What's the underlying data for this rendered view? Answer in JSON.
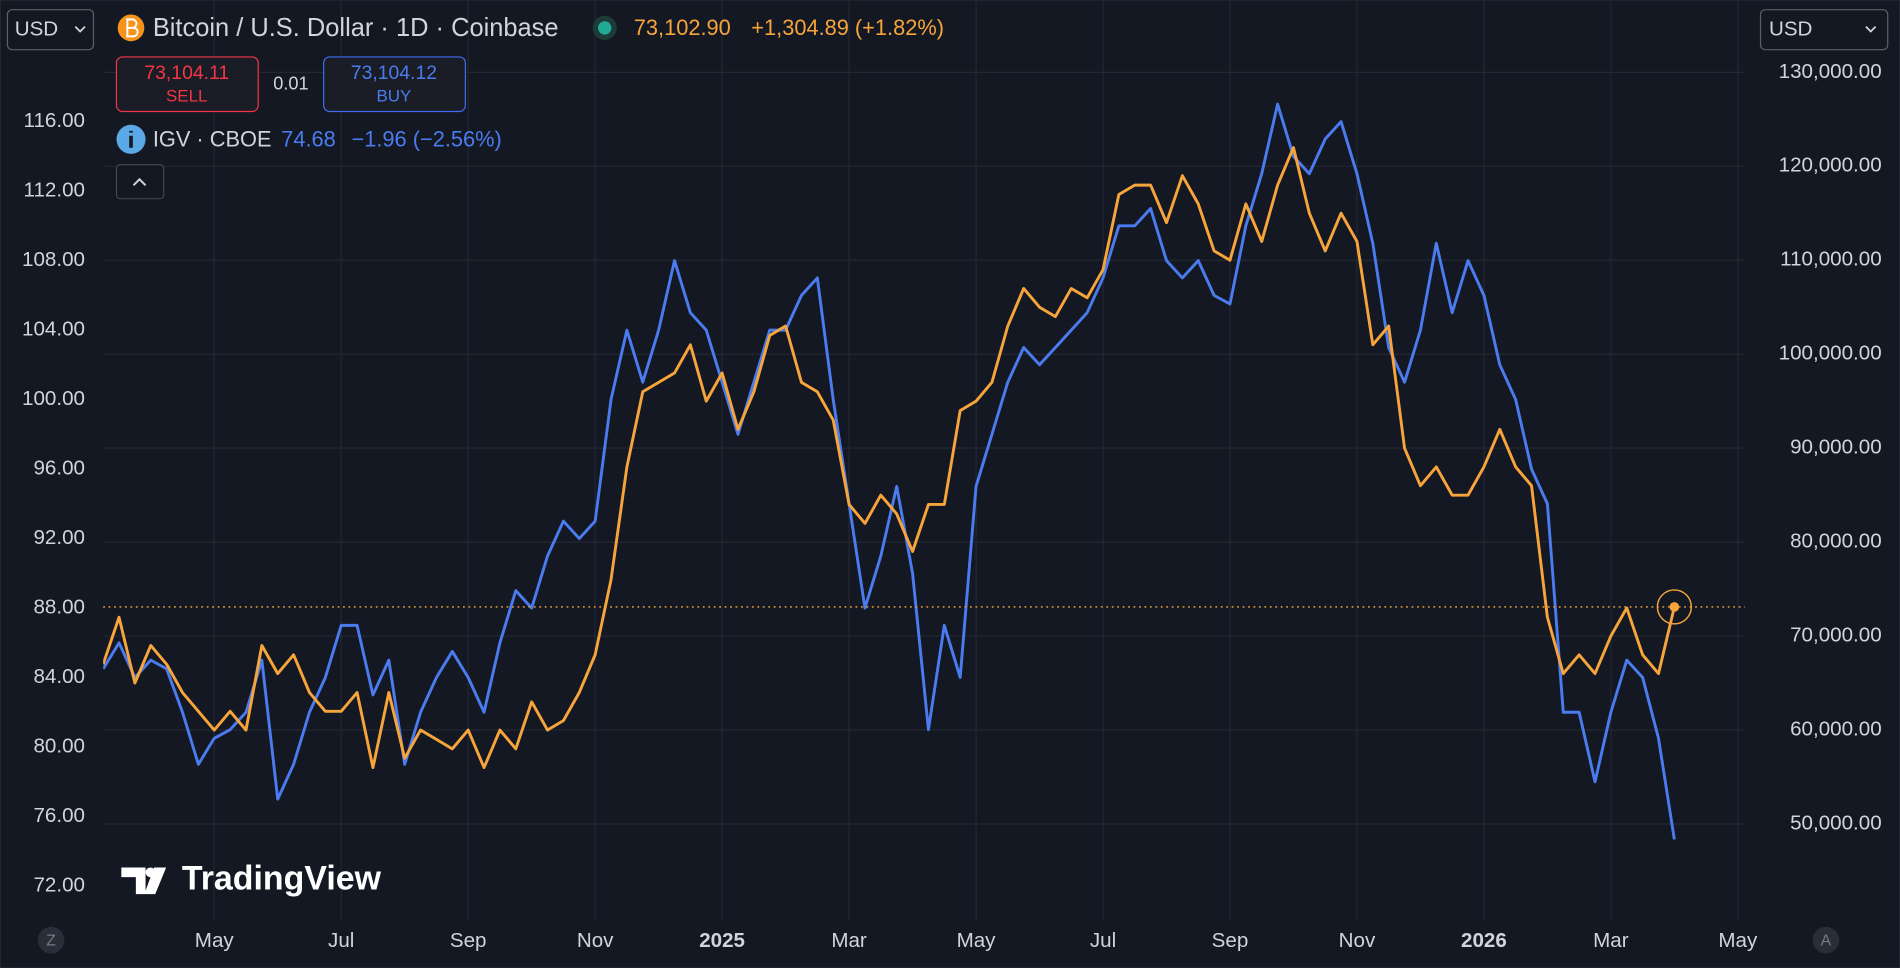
{
  "header": {
    "currency_left": "USD",
    "currency_right": "USD",
    "price": "73,102.90",
    "change": "+1,304.89 (+1.82%)",
    "sell_price": "73,104.11",
    "sell": "SELL",
    "spread": "0.01",
    "buy_price": "73,104.12",
    "buy": "BUY"
  },
  "overlay": {
    "price": "74.68",
    "change": "−1.96 (−2.56%)"
  },
  "logo": "TradingView",
  "footer": {
    "left": "Z",
    "right": "A"
  },
  "chart_data": {
    "type": "line",
    "grid": true,
    "categories": [
      null,
      null,
      null,
      null,
      null,
      null,
      null,
      "May",
      null,
      null,
      null,
      null,
      null,
      null,
      null,
      "Jul",
      null,
      null,
      null,
      null,
      null,
      null,
      null,
      "Sep",
      null,
      null,
      null,
      null,
      null,
      null,
      null,
      "Nov",
      null,
      null,
      null,
      null,
      null,
      null,
      null,
      "2025",
      null,
      null,
      null,
      null,
      null,
      null,
      null,
      "Mar",
      null,
      null,
      null,
      null,
      null,
      null,
      null,
      "May",
      null,
      null,
      null,
      null,
      null,
      null,
      null,
      "Jul",
      null,
      null,
      null,
      null,
      null,
      null,
      null,
      "Sep",
      null,
      null,
      null,
      null,
      null,
      null,
      null,
      "Nov",
      null,
      null,
      null,
      null,
      null,
      null,
      null,
      "2026",
      null,
      null,
      null,
      null,
      null,
      null,
      null,
      "Mar",
      null,
      null,
      null,
      null,
      null,
      null,
      null,
      "May",
      null
    ],
    "ylim": [
      70,
      123
    ],
    "yticks": [
      {
        "value": 72,
        "label": "72.00"
      },
      {
        "value": 76,
        "label": "76.00"
      },
      {
        "value": 80,
        "label": "80.00"
      },
      {
        "value": 84,
        "label": "84.00"
      },
      {
        "value": 88,
        "label": "88.00"
      },
      {
        "value": 92,
        "label": "92.00"
      },
      {
        "value": 96,
        "label": "96.00"
      },
      {
        "value": 100,
        "label": "100.00"
      },
      {
        "value": 104,
        "label": "104.00"
      },
      {
        "value": 108,
        "label": "108.00"
      },
      {
        "value": 112,
        "label": "112.00"
      },
      {
        "value": 116,
        "label": "116.00"
      }
    ],
    "y2lim": [
      39700,
      137700
    ],
    "y2ticks": [
      {
        "value": 50000,
        "label": "50,000.00"
      },
      {
        "value": 60000,
        "label": "60,000.00"
      },
      {
        "value": 70000,
        "label": "70,000.00"
      },
      {
        "value": 80000,
        "label": "80,000.00"
      },
      {
        "value": 90000,
        "label": "90,000.00"
      },
      {
        "value": 100000,
        "label": "100,000.00"
      },
      {
        "value": 110000,
        "label": "110,000.00"
      },
      {
        "value": 120000,
        "label": "120,000.00"
      },
      {
        "value": 130000,
        "label": "130,000.00"
      }
    ],
    "series": [
      {
        "name": "IGV · CBOE",
        "color": "#4a7cf0",
        "axis": "y",
        "values": [
          84.5,
          86,
          84,
          85,
          84.5,
          82,
          79,
          80.5,
          81,
          82,
          85,
          77,
          79,
          82,
          84,
          87,
          87,
          83,
          85,
          79,
          82,
          84,
          85.5,
          84,
          82,
          86,
          89,
          88,
          91,
          93,
          92,
          93,
          100,
          104,
          101,
          104,
          108,
          105,
          104,
          101,
          98,
          101,
          104,
          104,
          106,
          107,
          100,
          94,
          88,
          91,
          95,
          90,
          81,
          87,
          84,
          95,
          98,
          101,
          103,
          102,
          103,
          104,
          105,
          107,
          110,
          110,
          111,
          108,
          107,
          108,
          106,
          105.5,
          110,
          113,
          117,
          114,
          113,
          115,
          116,
          113,
          109,
          103,
          101,
          104,
          109,
          105,
          108,
          106,
          102,
          100,
          96,
          94,
          82,
          82,
          78,
          82,
          85,
          84,
          80.5,
          74.68,
          null,
          null,
          null,
          null,
          null
        ]
      },
      {
        "name": "Bitcoin / U.S. Dollar · 1D · Coinbase",
        "color": "#f7a53b",
        "axis": "y2",
        "values": [
          67000,
          72000,
          65000,
          69000,
          67000,
          64000,
          62000,
          60000,
          62000,
          60000,
          69000,
          66000,
          68000,
          64000,
          62000,
          62000,
          64000,
          56000,
          64000,
          57000,
          60000,
          59000,
          58000,
          60000,
          56000,
          60000,
          58000,
          63000,
          60000,
          61000,
          64000,
          68000,
          76000,
          88000,
          96000,
          97000,
          98000,
          101000,
          95000,
          98000,
          92000,
          96000,
          102000,
          103000,
          97000,
          96000,
          93000,
          84000,
          82000,
          85000,
          83000,
          79000,
          84000,
          84000,
          94000,
          95000,
          97000,
          103000,
          107000,
          105000,
          104000,
          107000,
          106000,
          109000,
          117000,
          118000,
          118000,
          114000,
          119000,
          116000,
          111000,
          110000,
          116000,
          112000,
          118000,
          122000,
          115000,
          111000,
          115000,
          112000,
          101000,
          103000,
          90000,
          86000,
          88000,
          85000,
          85000,
          88000,
          92000,
          88000,
          86000,
          72000,
          66000,
          68000,
          66000,
          70000,
          73000,
          68000,
          66000,
          73102.9,
          null,
          null,
          null,
          null,
          null
        ]
      }
    ]
  }
}
